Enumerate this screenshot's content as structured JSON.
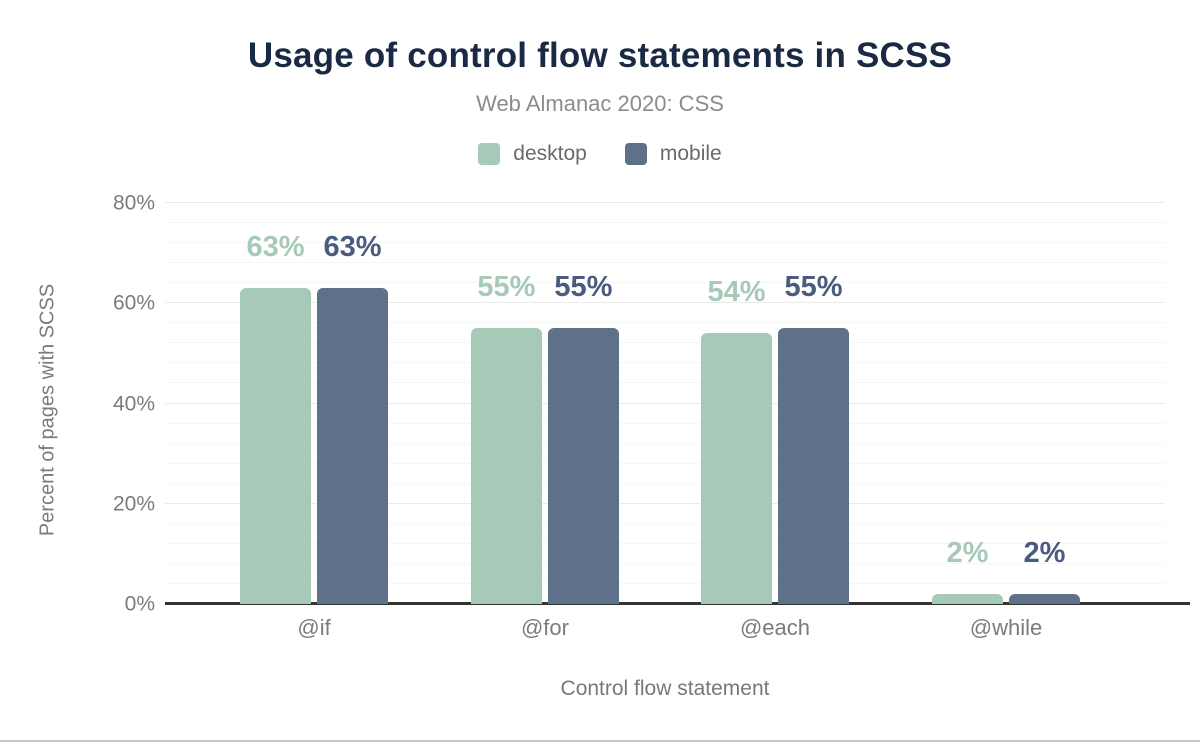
{
  "chart_data": {
    "type": "bar",
    "title": "Usage of control flow statements in SCSS",
    "subtitle": "Web Almanac 2020: CSS",
    "categories": [
      "@if",
      "@for",
      "@each",
      "@while"
    ],
    "series": [
      {
        "name": "desktop",
        "color": "#a7c9b8",
        "label_color": "#a7c9b8",
        "values": [
          63,
          55,
          54,
          2
        ],
        "labels": [
          "63%",
          "55%",
          "54%",
          "2%"
        ]
      },
      {
        "name": "mobile",
        "color": "#5f7089",
        "label_color": "#4a5c7e",
        "values": [
          63,
          55,
          55,
          2
        ],
        "labels": [
          "63%",
          "55%",
          "55%",
          "2%"
        ]
      }
    ],
    "xlabel": "Control flow statement",
    "ylabel": "Percent of pages with SCSS",
    "ylim": [
      0,
      80
    ],
    "y_ticks": [
      "0%",
      "20%",
      "40%",
      "60%",
      "80%"
    ],
    "y_tick_values": [
      0,
      20,
      40,
      60,
      80
    ],
    "grid": "horizontal, minor every 4%, major every 20%",
    "legend_position": "top",
    "colors": {
      "title": "#1a2944",
      "subtitle": "#8c8c8c",
      "axis_text": "#7b7b7b",
      "axis_line": "#333333"
    }
  }
}
